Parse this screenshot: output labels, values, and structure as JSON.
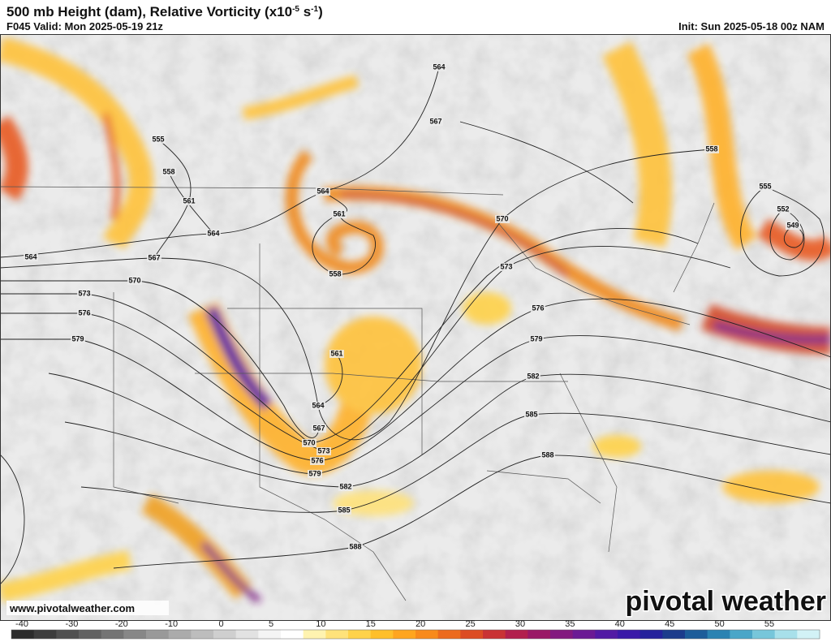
{
  "header": {
    "title": {
      "main": "500 mb Height (dam), Relative Vorticity (x10",
      "exp1": "-5",
      "mid": " s",
      "exp2": "-1",
      "end": ")"
    },
    "valid": "F045 Valid: Mon 2025-05-19 21z",
    "init": "Init: Sun 2025-05-18 00z NAM"
  },
  "contour_labels": [
    "555",
    "558",
    "561",
    "564",
    "567",
    "570",
    "573",
    "576",
    "579",
    "564",
    "564",
    "567",
    "564",
    "561",
    "558",
    "561",
    "564",
    "567",
    "570",
    "573",
    "576",
    "579",
    "582",
    "585",
    "588",
    "570",
    "573",
    "576",
    "579",
    "582",
    "585",
    "588",
    "558",
    "555",
    "552",
    "549"
  ],
  "footer": {
    "website": "www.pivotalweather.com",
    "logo": "pivotal weather"
  },
  "colorbar": {
    "ticks": [
      -40,
      -30,
      -20,
      -10,
      0,
      5,
      10,
      15,
      20,
      25,
      30,
      35,
      40,
      45,
      50,
      55
    ],
    "colors": [
      "#2b2b2b",
      "#3d3d3d",
      "#505050",
      "#626262",
      "#747474",
      "#878787",
      "#999999",
      "#ababab",
      "#bdbdbd",
      "#cfcfcf",
      "#e2e2e2",
      "#f4f4f4",
      "#ffffff",
      "#fff3b0",
      "#ffe27a",
      "#ffd24a",
      "#ffbf2a",
      "#ffa51f",
      "#f88a1c",
      "#ec6b1e",
      "#dc4c23",
      "#c93234",
      "#b21f4d",
      "#9a1866",
      "#83197f",
      "#6b1b94",
      "#521ba4",
      "#3a1aa8",
      "#25229c",
      "#1c3c8c",
      "#1d5d9a",
      "#2b83b2",
      "#4aa6c8",
      "#77c6da",
      "#a8e0ea",
      "#d2f2f6"
    ]
  }
}
